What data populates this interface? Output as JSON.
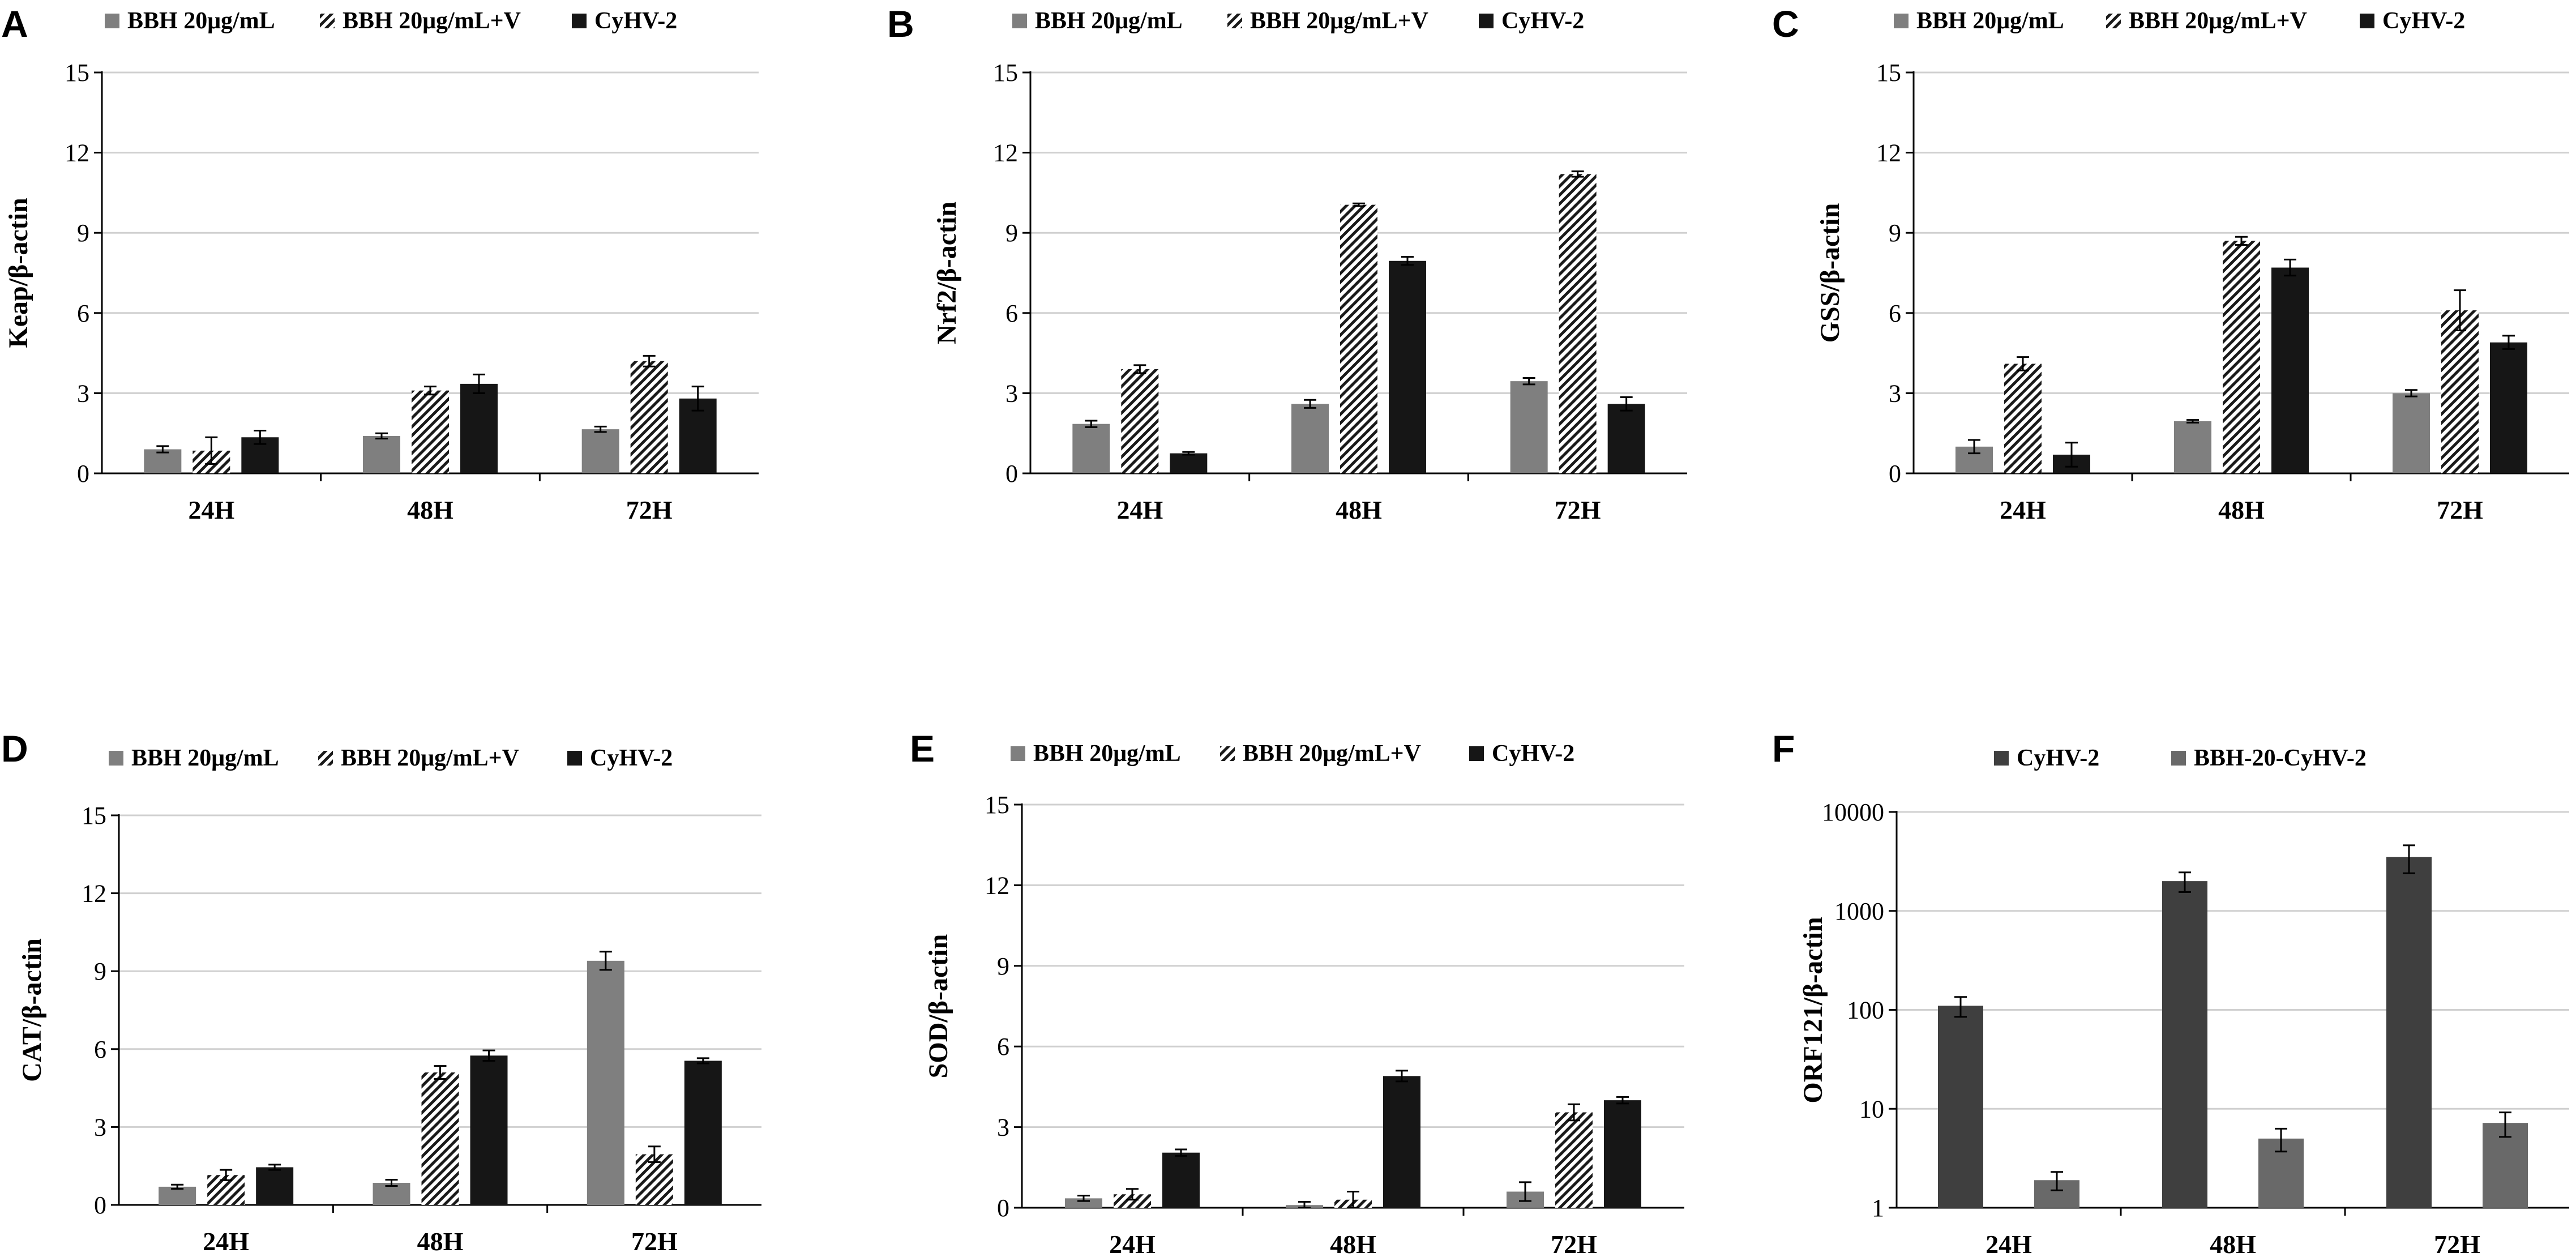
{
  "colors": {
    "BBH": "#7f7f7f",
    "BBH_V_hatch": "#1a1a1a",
    "CyHV2": "#161616",
    "F_CyHV2": "#3f3f3f",
    "F_BBH20": "#696969",
    "grid": "#d0d0d0",
    "axis": "#000000"
  },
  "chart_data": [
    {
      "panel": "A",
      "type": "bar",
      "title": "",
      "xlabel": "",
      "ylabel": "Keap/β-actin",
      "ylim": [
        0,
        15
      ],
      "yticks": [
        "0",
        "3",
        "6",
        "9",
        "12",
        "15"
      ],
      "grid": true,
      "categories": [
        "24H",
        "48H",
        "72H"
      ],
      "legend": {
        "placement": "top"
      },
      "series": [
        {
          "name": "BBH 20μg/mL",
          "style": "solid-gray",
          "values": [
            0.9,
            1.4,
            1.65
          ],
          "errors": [
            0.12,
            0.1,
            0.1
          ]
        },
        {
          "name": "BBH 20μg/mL+V",
          "style": "hatched",
          "values": [
            0.85,
            3.1,
            4.2
          ],
          "errors": [
            0.5,
            0.15,
            0.2
          ]
        },
        {
          "name": "CyHV-2",
          "style": "solid-black",
          "values": [
            1.35,
            3.35,
            2.8
          ],
          "errors": [
            0.25,
            0.35,
            0.45
          ]
        }
      ]
    },
    {
      "panel": "B",
      "type": "bar",
      "title": "",
      "xlabel": "",
      "ylabel": "Nrf2/β-actin",
      "ylim": [
        0,
        15
      ],
      "yticks": [
        "0",
        "3",
        "6",
        "9",
        "12",
        "15"
      ],
      "grid": true,
      "categories": [
        "24H",
        "48H",
        "72H"
      ],
      "legend": {
        "placement": "top"
      },
      "series": [
        {
          "name": "BBH 20μg/mL",
          "style": "solid-gray",
          "values": [
            1.85,
            2.6,
            3.45
          ],
          "errors": [
            0.12,
            0.15,
            0.12
          ]
        },
        {
          "name": "BBH 20μg/mL+V",
          "style": "hatched",
          "values": [
            3.9,
            10.05,
            11.2
          ],
          "errors": [
            0.15,
            0.05,
            0.1
          ]
        },
        {
          "name": "CyHV-2",
          "style": "solid-black",
          "values": [
            0.75,
            7.95,
            2.6
          ],
          "errors": [
            0.05,
            0.15,
            0.25
          ]
        }
      ]
    },
    {
      "panel": "C",
      "type": "bar",
      "title": "",
      "xlabel": "",
      "ylabel": "GSS/β-actin",
      "ylim": [
        0,
        15
      ],
      "yticks": [
        "0",
        "3",
        "6",
        "9",
        "12",
        "15"
      ],
      "grid": true,
      "categories": [
        "24H",
        "48H",
        "72H"
      ],
      "legend": {
        "placement": "top"
      },
      "series": [
        {
          "name": "BBH 20μg/mL",
          "style": "solid-gray",
          "values": [
            1.0,
            1.95,
            3.0
          ],
          "errors": [
            0.25,
            0.05,
            0.12
          ]
        },
        {
          "name": "BBH 20μg/mL+V",
          "style": "hatched",
          "values": [
            4.1,
            8.7,
            6.1
          ],
          "errors": [
            0.25,
            0.15,
            0.75
          ]
        },
        {
          "name": "CyHV-2",
          "style": "solid-black",
          "values": [
            0.7,
            7.7,
            4.9
          ],
          "errors": [
            0.45,
            0.3,
            0.25
          ]
        }
      ]
    },
    {
      "panel": "D",
      "type": "bar",
      "title": "",
      "xlabel": "",
      "ylabel": "CAT/β-actin",
      "ylim": [
        0,
        15
      ],
      "yticks": [
        "0",
        "3",
        "6",
        "9",
        "12",
        "15"
      ],
      "grid": true,
      "categories": [
        "24H",
        "48H",
        "72H"
      ],
      "legend": {
        "placement": "top"
      },
      "series": [
        {
          "name": "BBH 20μg/mL",
          "style": "solid-gray",
          "values": [
            0.7,
            0.85,
            9.4
          ],
          "errors": [
            0.08,
            0.12,
            0.35
          ]
        },
        {
          "name": "BBH 20μg/mL+V",
          "style": "hatched",
          "values": [
            1.15,
            5.1,
            1.95
          ],
          "errors": [
            0.2,
            0.25,
            0.3
          ]
        },
        {
          "name": "CyHV-2",
          "style": "solid-black",
          "values": [
            1.45,
            5.75,
            5.55
          ],
          "errors": [
            0.1,
            0.2,
            0.1
          ]
        }
      ]
    },
    {
      "panel": "E",
      "type": "bar",
      "title": "",
      "xlabel": "",
      "ylabel": "SOD/β-actin",
      "ylim": [
        0,
        15
      ],
      "yticks": [
        "0",
        "3",
        "6",
        "9",
        "12",
        "15"
      ],
      "grid": true,
      "categories": [
        "24H",
        "48H",
        "72H"
      ],
      "legend": {
        "placement": "top"
      },
      "series": [
        {
          "name": "BBH 20μg/mL",
          "style": "solid-gray",
          "values": [
            0.35,
            0.1,
            0.6
          ],
          "errors": [
            0.1,
            0.12,
            0.35
          ]
        },
        {
          "name": "BBH 20μg/mL+V",
          "style": "hatched",
          "values": [
            0.5,
            0.3,
            3.55
          ],
          "errors": [
            0.2,
            0.3,
            0.3
          ]
        },
        {
          "name": "CyHV-2",
          "style": "solid-black",
          "values": [
            2.05,
            4.9,
            4.0
          ],
          "errors": [
            0.12,
            0.2,
            0.12
          ]
        }
      ]
    },
    {
      "panel": "F",
      "type": "bar",
      "title": "",
      "xlabel": "",
      "ylabel": "ORF121/β-actin",
      "yscale": "log",
      "ylim": [
        1,
        10000
      ],
      "yticks": [
        "1",
        "10",
        "100",
        "1000",
        "10000"
      ],
      "grid": true,
      "categories": [
        "24H",
        "48H",
        "72H"
      ],
      "legend": {
        "placement": "top"
      },
      "series": [
        {
          "name": "CyHV-2",
          "style": "dark-gray",
          "values": [
            110,
            2000,
            3500
          ],
          "errors": [
            25,
            450,
            1100
          ]
        },
        {
          "name": "BBH-20-CyHV-2",
          "style": "medium-gray",
          "values": [
            1.9,
            5.0,
            7.2
          ],
          "errors": [
            0.4,
            1.3,
            2.0
          ]
        }
      ]
    }
  ]
}
